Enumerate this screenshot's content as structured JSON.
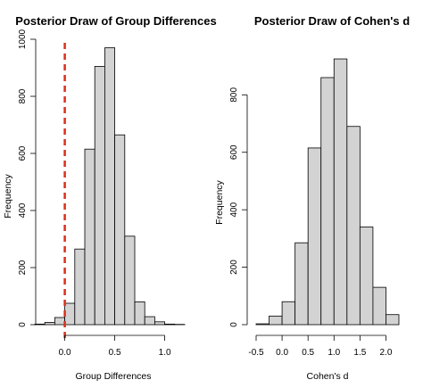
{
  "chart_data": [
    {
      "type": "bar",
      "title": "Posterior Draw of Group Differences",
      "xlabel": "Group Differences",
      "ylabel": "Frequency",
      "xlim": [
        -0.3,
        1.2
      ],
      "ylim": [
        0,
        1000
      ],
      "xticks": [
        0.0,
        0.5,
        1.0
      ],
      "xtick_labels": [
        "0.0",
        "0.5",
        "1.0"
      ],
      "yticks": [
        0,
        200,
        400,
        600,
        800,
        1000
      ],
      "ytick_labels": [
        "0",
        "200",
        "400",
        "600",
        "800",
        "1000"
      ],
      "bin_edges": [
        -0.3,
        -0.2,
        -0.1,
        0.0,
        0.1,
        0.2,
        0.3,
        0.4,
        0.5,
        0.6,
        0.7,
        0.8,
        0.9,
        1.0,
        1.1,
        1.2
      ],
      "values": [
        2,
        8,
        25,
        75,
        265,
        615,
        905,
        970,
        665,
        310,
        80,
        28,
        10,
        2,
        1
      ],
      "reference_line": {
        "x": 0.0,
        "style": "dashed",
        "color": "#d9301c"
      },
      "bar_color": "#d3d3d3"
    },
    {
      "type": "bar",
      "title": "Posterior Draw of Cohen's d",
      "xlabel": "Cohen's d",
      "ylabel": "Frequency",
      "xlim": [
        -0.5,
        2.25
      ],
      "ylim": [
        0,
        950
      ],
      "xticks": [
        -0.5,
        0.0,
        0.5,
        1.0,
        1.5,
        2.0
      ],
      "xtick_labels": [
        "-0.5",
        "0.0",
        "0.5",
        "1.0",
        "1.5",
        "2.0"
      ],
      "yticks": [
        0,
        200,
        400,
        600,
        800
      ],
      "ytick_labels": [
        "0",
        "200",
        "400",
        "600",
        "800"
      ],
      "bin_edges": [
        -0.5,
        -0.25,
        0.0,
        0.25,
        0.5,
        0.75,
        1.0,
        1.25,
        1.5,
        1.75,
        2.0,
        2.25
      ],
      "values": [
        3,
        30,
        80,
        285,
        615,
        860,
        925,
        690,
        340,
        130,
        35
      ],
      "bar_color": "#d3d3d3"
    }
  ]
}
